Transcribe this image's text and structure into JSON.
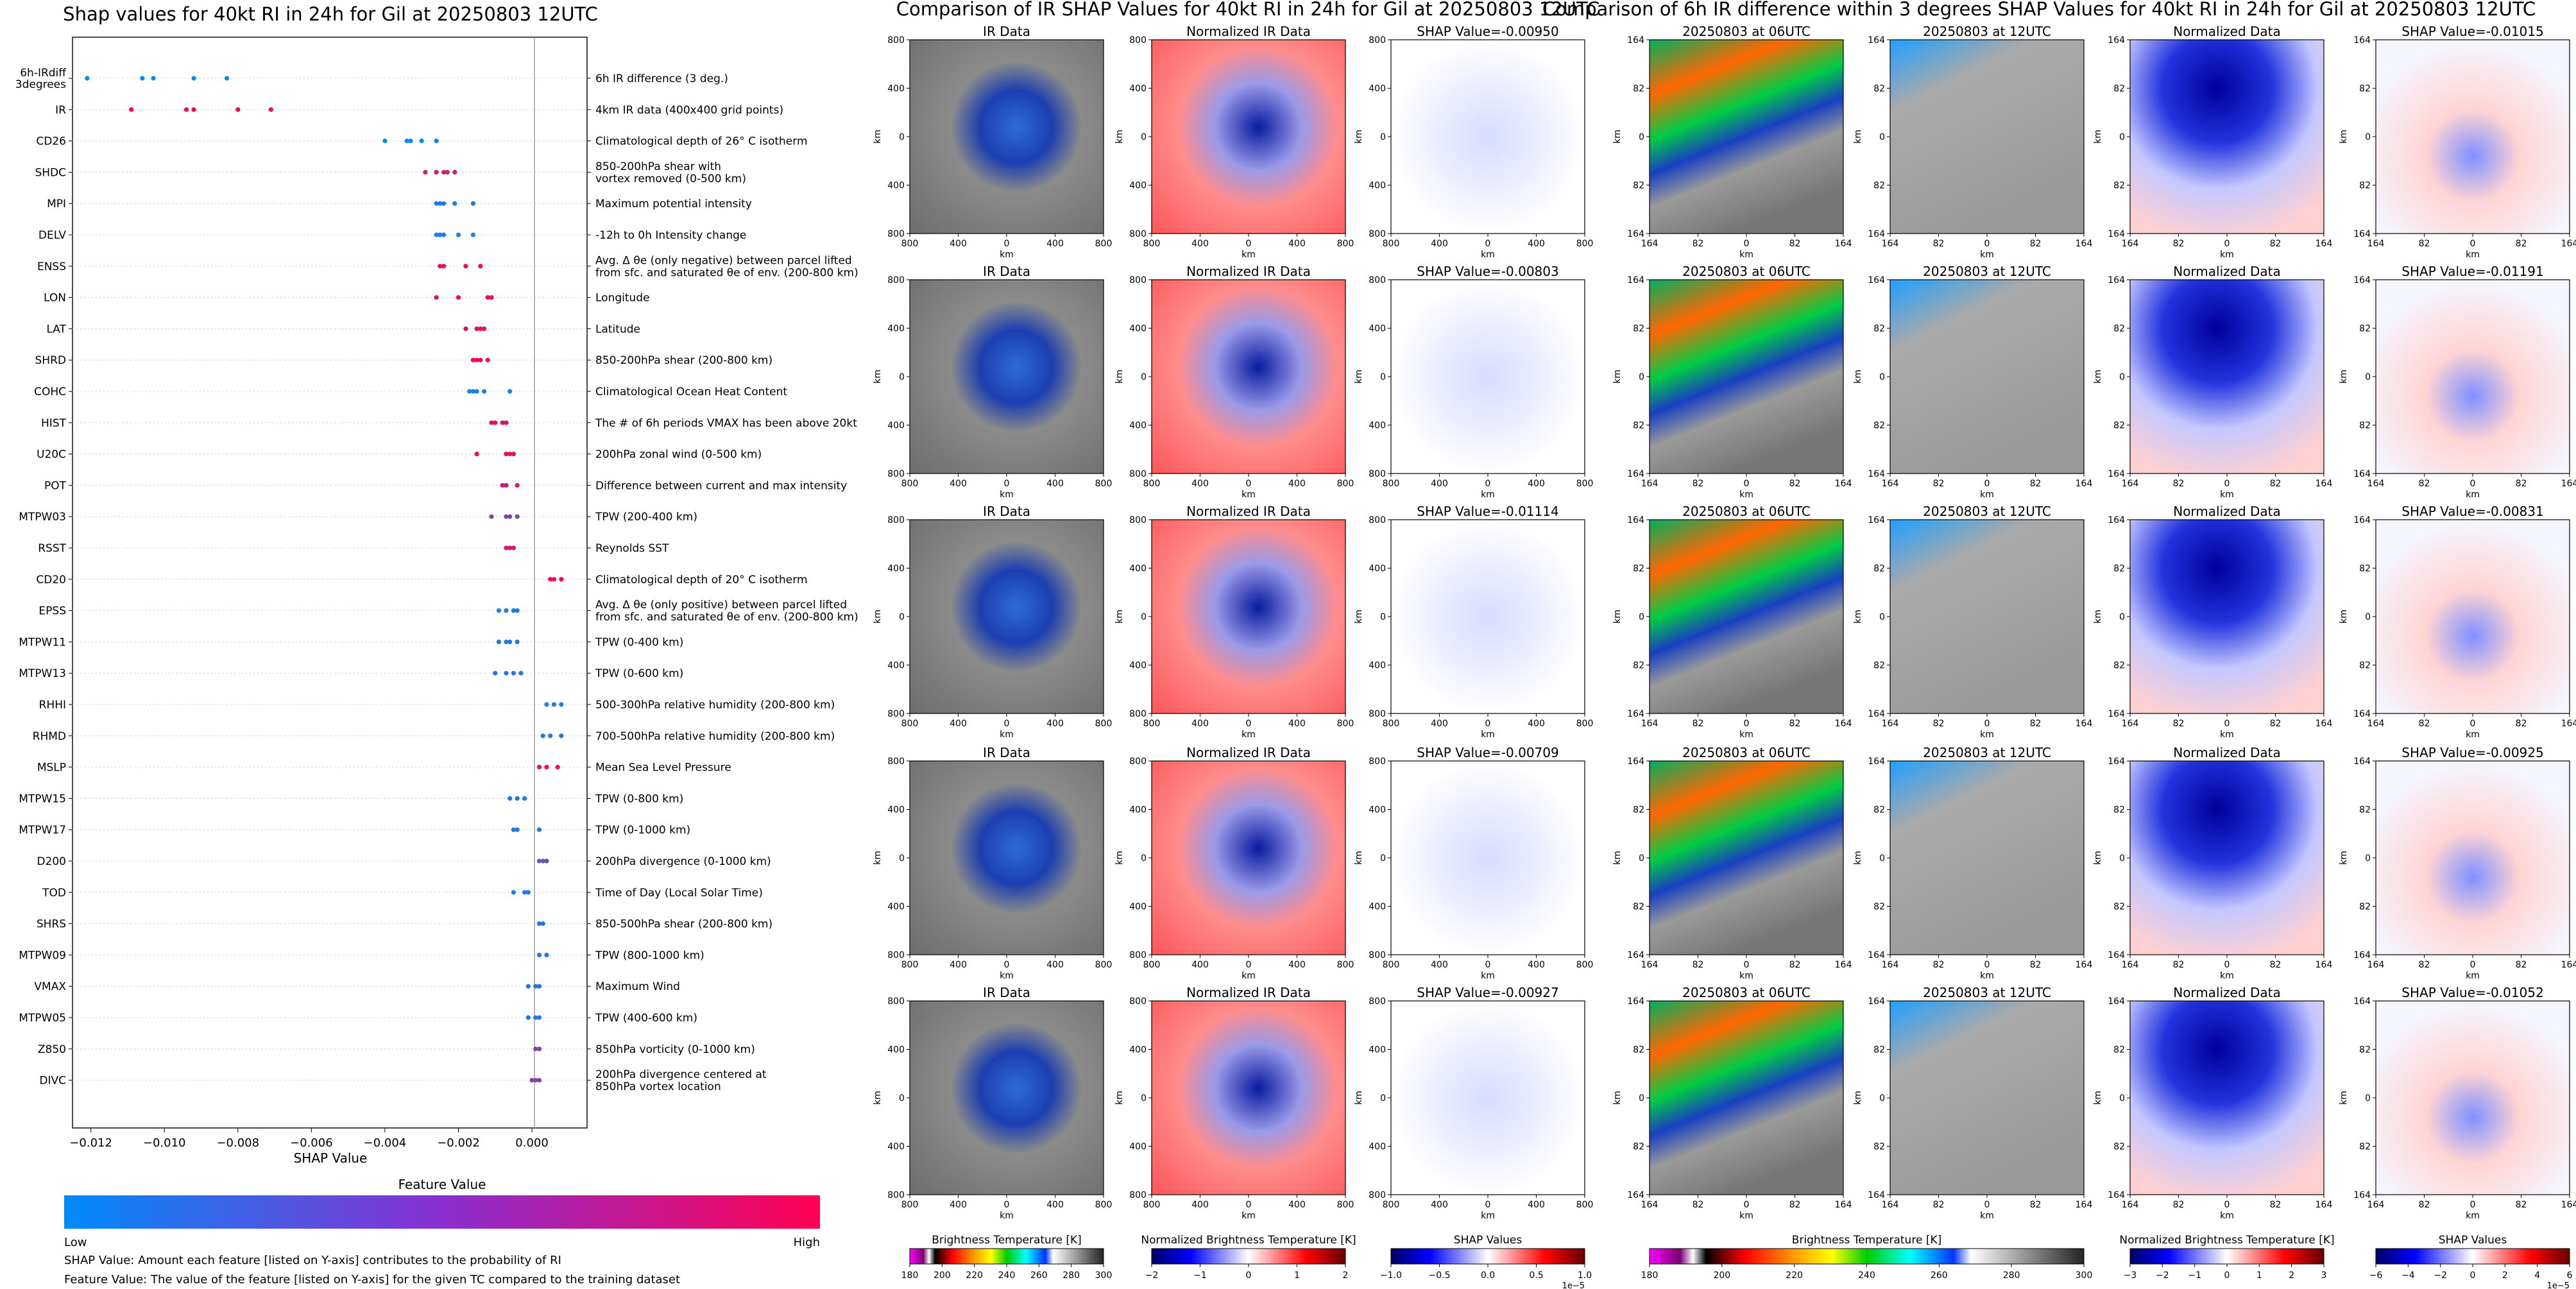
{
  "figure_title_shap": "Shap values for 40kt RI in 24h for Gil at 20250803 12UTC",
  "figure_title_ir": "Comparison of IR SHAP Values for 40kt RI in 24h for Gil at 20250803 12UTC",
  "figure_title_diff": "Comparison of 6h IR difference within 3 degrees SHAP Values for 40kt RI in 24h for Gil at 20250803 12UTC",
  "chart_data": [
    {
      "type": "scatter",
      "title": "Shap values for 40kt RI in 24h for Gil at 20250803 12UTC",
      "xlabel": "SHAP Value",
      "xlim": [
        -0.0125,
        0.0015
      ],
      "xticks": [
        -0.012,
        -0.01,
        -0.008,
        -0.006,
        -0.004,
        -0.002,
        0.0
      ],
      "xtick_labels": [
        "−0.012",
        "−0.010",
        "−0.008",
        "−0.006",
        "−0.004",
        "−0.002",
        "0.000"
      ],
      "colorbar": {
        "title": "Feature Value",
        "low": "Low",
        "high": "High",
        "low_color": "#008bfb",
        "high_color": "#ff0052"
      },
      "features": [
        {
          "name": "6h-IRdiff\n3degrees",
          "desc": "6h IR difference (3 deg.)",
          "points": [
            [
              -0.0121,
              0.0
            ],
            [
              -0.0106,
              0.0
            ],
            [
              -0.0103,
              0.0
            ],
            [
              -0.0092,
              0.0
            ],
            [
              -0.0083,
              0.0
            ]
          ]
        },
        {
          "name": "IR",
          "desc": "4km IR data (400x400 grid points)",
          "points": [
            [
              -0.0109,
              1.0
            ],
            [
              -0.0094,
              1.0
            ],
            [
              -0.0092,
              1.0
            ],
            [
              -0.008,
              1.0
            ],
            [
              -0.0071,
              1.0
            ]
          ]
        },
        {
          "name": "CD26",
          "desc": "Climatological depth of 26° C isotherm",
          "points": [
            [
              -0.004,
              0.0
            ],
            [
              -0.0034,
              0.0
            ],
            [
              -0.0033,
              0.0
            ],
            [
              -0.003,
              0.0
            ],
            [
              -0.0026,
              0.0
            ]
          ]
        },
        {
          "name": "SHDC",
          "desc": "850-200hPa shear with\nvortex removed (0-500 km)",
          "points": [
            [
              -0.0029,
              0.8
            ],
            [
              -0.0026,
              0.8
            ],
            [
              -0.0024,
              0.8
            ],
            [
              -0.0023,
              0.8
            ],
            [
              -0.0021,
              0.8
            ]
          ]
        },
        {
          "name": "MPI",
          "desc": "Maximum potential intensity",
          "points": [
            [
              -0.0026,
              0.1
            ],
            [
              -0.0025,
              0.1
            ],
            [
              -0.0024,
              0.1
            ],
            [
              -0.0021,
              0.1
            ],
            [
              -0.0016,
              0.1
            ]
          ]
        },
        {
          "name": "DELV",
          "desc": "-12h to 0h Intensity change",
          "points": [
            [
              -0.0026,
              0.1
            ],
            [
              -0.0025,
              0.1
            ],
            [
              -0.0024,
              0.1
            ],
            [
              -0.002,
              0.1
            ],
            [
              -0.0016,
              0.1
            ]
          ]
        },
        {
          "name": "ENSS",
          "desc": "Avg. Δ θe (only negative) between parcel lifted\nfrom sfc. and saturated θe of env. (200-800 km)",
          "points": [
            [
              -0.0025,
              0.95
            ],
            [
              -0.0024,
              0.95
            ],
            [
              -0.0018,
              0.95
            ],
            [
              -0.0014,
              0.95
            ]
          ]
        },
        {
          "name": "LON",
          "desc": "Longitude",
          "points": [
            [
              -0.0026,
              0.95
            ],
            [
              -0.002,
              0.95
            ],
            [
              -0.0012,
              0.95
            ],
            [
              -0.0011,
              0.95
            ]
          ]
        },
        {
          "name": "LAT",
          "desc": "Latitude",
          "points": [
            [
              -0.0018,
              0.9
            ],
            [
              -0.0015,
              0.9
            ],
            [
              -0.0014,
              0.9
            ],
            [
              -0.0013,
              0.9
            ]
          ]
        },
        {
          "name": "SHRD",
          "desc": "850-200hPa shear (200-800 km)",
          "points": [
            [
              -0.0016,
              0.95
            ],
            [
              -0.0015,
              0.95
            ],
            [
              -0.0014,
              0.95
            ],
            [
              -0.0012,
              0.95
            ]
          ]
        },
        {
          "name": "COHC",
          "desc": "Climatological Ocean Heat Content",
          "points": [
            [
              -0.0017,
              0.1
            ],
            [
              -0.0016,
              0.1
            ],
            [
              -0.0015,
              0.1
            ],
            [
              -0.0013,
              0.1
            ],
            [
              -0.0006,
              0.1
            ]
          ]
        },
        {
          "name": "HIST",
          "desc": "The # of 6h periods VMAX has been above 20kt",
          "points": [
            [
              -0.0011,
              0.9
            ],
            [
              -0.001,
              0.9
            ],
            [
              -0.0008,
              0.9
            ],
            [
              -0.0007,
              0.9
            ]
          ]
        },
        {
          "name": "U20C",
          "desc": "200hPa zonal wind (0-500 km)",
          "points": [
            [
              -0.0015,
              0.95
            ],
            [
              -0.0007,
              0.9
            ],
            [
              -0.0006,
              0.9
            ],
            [
              -0.0005,
              0.9
            ]
          ]
        },
        {
          "name": "POT",
          "desc": "Difference between current and max intensity",
          "points": [
            [
              -0.0008,
              0.8
            ],
            [
              -0.0007,
              0.8
            ],
            [
              -0.0004,
              0.8
            ]
          ]
        },
        {
          "name": "MTPW03",
          "desc": "TPW (200-400 km)",
          "points": [
            [
              -0.0011,
              0.5
            ],
            [
              -0.0007,
              0.5
            ],
            [
              -0.0006,
              0.5
            ],
            [
              -0.0004,
              0.5
            ]
          ]
        },
        {
          "name": "RSST",
          "desc": "Reynolds SST",
          "points": [
            [
              -0.0007,
              0.85
            ],
            [
              -0.0006,
              0.85
            ],
            [
              -0.0005,
              0.85
            ]
          ]
        },
        {
          "name": "CD20",
          "desc": "Climatological depth of 20° C isotherm",
          "points": [
            [
              0.0005,
              1.0
            ],
            [
              0.0006,
              1.0
            ],
            [
              0.0008,
              1.0
            ]
          ]
        },
        {
          "name": "EPSS",
          "desc": "Avg. Δ θe (only positive) between parcel lifted\nfrom sfc. and saturated θe of env. (200-800 km)",
          "points": [
            [
              -0.0009,
              0.1
            ],
            [
              -0.0007,
              0.1
            ],
            [
              -0.0005,
              0.1
            ],
            [
              -0.0004,
              0.1
            ]
          ]
        },
        {
          "name": "MTPW11",
          "desc": "TPW (0-400 km)",
          "points": [
            [
              -0.0009,
              0.15
            ],
            [
              -0.0007,
              0.15
            ],
            [
              -0.0006,
              0.15
            ],
            [
              -0.0004,
              0.15
            ]
          ]
        },
        {
          "name": "MTPW13",
          "desc": "TPW (0-600 km)",
          "points": [
            [
              -0.001,
              0.15
            ],
            [
              -0.0007,
              0.15
            ],
            [
              -0.0005,
              0.15
            ],
            [
              -0.0003,
              0.15
            ]
          ]
        },
        {
          "name": "RHHI",
          "desc": "500-300hPa relative humidity (200-800 km)",
          "points": [
            [
              0.0004,
              0.1
            ],
            [
              0.0006,
              0.1
            ],
            [
              0.0008,
              0.1
            ]
          ]
        },
        {
          "name": "RHMD",
          "desc": "700-500hPa relative humidity (200-800 km)",
          "points": [
            [
              0.0003,
              0.15
            ],
            [
              0.0005,
              0.15
            ],
            [
              0.0008,
              0.15
            ]
          ]
        },
        {
          "name": "MSLP",
          "desc": "Mean Sea Level Pressure",
          "points": [
            [
              0.0002,
              0.95
            ],
            [
              0.0004,
              0.95
            ],
            [
              0.0007,
              0.95
            ]
          ]
        },
        {
          "name": "MTPW15",
          "desc": "TPW (0-800 km)",
          "points": [
            [
              -0.0006,
              0.15
            ],
            [
              -0.0004,
              0.15
            ],
            [
              -0.0002,
              0.15
            ]
          ]
        },
        {
          "name": "MTPW17",
          "desc": "TPW (0-1000 km)",
          "points": [
            [
              -0.0005,
              0.15
            ],
            [
              -0.0004,
              0.15
            ],
            [
              0.0002,
              0.15
            ]
          ]
        },
        {
          "name": "D200",
          "desc": "200hPa divergence (0-1000 km)",
          "points": [
            [
              0.0002,
              0.4
            ],
            [
              0.0003,
              0.4
            ],
            [
              0.0004,
              0.4
            ]
          ]
        },
        {
          "name": "TOD",
          "desc": "Time of Day (Local Solar Time)",
          "points": [
            [
              -0.0005,
              0.1
            ],
            [
              -0.0002,
              0.1
            ],
            [
              -0.0001,
              0.1
            ]
          ]
        },
        {
          "name": "SHRS",
          "desc": "850-500hPa shear (200-800 km)",
          "points": [
            [
              0.0002,
              0.15
            ],
            [
              0.0003,
              0.15
            ]
          ]
        },
        {
          "name": "MTPW09",
          "desc": "TPW (800-1000 km)",
          "points": [
            [
              0.0002,
              0.15
            ],
            [
              0.0004,
              0.15
            ]
          ]
        },
        {
          "name": "VMAX",
          "desc": "Maximum Wind",
          "points": [
            [
              -0.0001,
              0.15
            ],
            [
              0.0001,
              0.15
            ],
            [
              0.0002,
              0.15
            ]
          ]
        },
        {
          "name": "MTPW05",
          "desc": "TPW (400-600 km)",
          "points": [
            [
              -0.0001,
              0.15
            ],
            [
              0.0001,
              0.15
            ],
            [
              0.0002,
              0.15
            ]
          ]
        },
        {
          "name": "Z850",
          "desc": "850hPa vorticity (0-1000 km)",
          "points": [
            [
              0.0001,
              0.5
            ],
            [
              0.0002,
              0.5
            ]
          ]
        },
        {
          "name": "DIVC",
          "desc": "200hPa divergence centered at\n850hPa vortex location",
          "points": [
            [
              0.0,
              0.5
            ],
            [
              0.0001,
              0.5
            ],
            [
              0.0002,
              0.5
            ]
          ]
        }
      ]
    },
    {
      "type": "heatmap",
      "title": "Comparison of IR SHAP Values for 40kt RI in 24h for Gil at 20250803 12UTC",
      "column_titles": [
        "IR Data",
        "Normalized IR Data"
      ],
      "shap_titles": [
        "SHAP Value=-0.00950",
        "SHAP Value=-0.00803",
        "SHAP Value=-0.01114",
        "SHAP Value=-0.00709",
        "SHAP Value=-0.00927"
      ],
      "xlabel": "km",
      "ylabel": "km",
      "xtick_labels": [
        "800",
        "400",
        "0",
        "400",
        "800"
      ],
      "ytick_labels": [
        "800",
        "400",
        "0",
        "400",
        "800"
      ],
      "colorbars": [
        {
          "label": "Brightness Temperature [K]",
          "ticks": [
            "180",
            "200",
            "220",
            "240",
            "260",
            "280",
            "300"
          ]
        },
        {
          "label": "Normalized Brightness Temperature [K]",
          "ticks": [
            "−2",
            "−1",
            "0",
            "1",
            "2"
          ]
        },
        {
          "label": "SHAP Values",
          "ticks": [
            "−1.0",
            "−0.5",
            "0.0",
            "0.5",
            "1.0"
          ],
          "exponent": "1e−5"
        }
      ]
    },
    {
      "type": "heatmap",
      "title": "Comparison of 6h IR difference within 3 degrees SHAP Values for 40kt RI in 24h for Gil at 20250803 12UTC",
      "column_titles": [
        "20250803 at 06UTC",
        "20250803 at 12UTC",
        "Normalized Data"
      ],
      "shap_titles": [
        "SHAP Value=-0.01015",
        "SHAP Value=-0.01191",
        "SHAP Value=-0.00831",
        "SHAP Value=-0.00925",
        "SHAP Value=-0.01052"
      ],
      "xlabel": "km",
      "ylabel": "km",
      "xtick_labels": [
        "164",
        "82",
        "0",
        "82",
        "164"
      ],
      "ytick_labels": [
        "164",
        "82",
        "0",
        "82",
        "164"
      ],
      "colorbars": [
        {
          "label": "Brightness Temperature [K]",
          "ticks": [
            "180",
            "200",
            "220",
            "240",
            "260",
            "280",
            "300"
          ]
        },
        {
          "label": "Normalized Brightness Temperature [K]",
          "ticks": [
            "−3",
            "−2",
            "−1",
            "0",
            "1",
            "2",
            "3"
          ]
        },
        {
          "label": "SHAP Values",
          "ticks": [
            "−6",
            "−4",
            "−2",
            "0",
            "2",
            "4",
            "6"
          ],
          "exponent": "1e−5"
        }
      ]
    }
  ],
  "footnotes": [
    "SHAP Value: Amount each feature [listed on Y-axis] contributes to the probability of RI",
    "Feature Value: The value of the feature [listed on Y-axis] for the given TC compared to the training dataset"
  ]
}
